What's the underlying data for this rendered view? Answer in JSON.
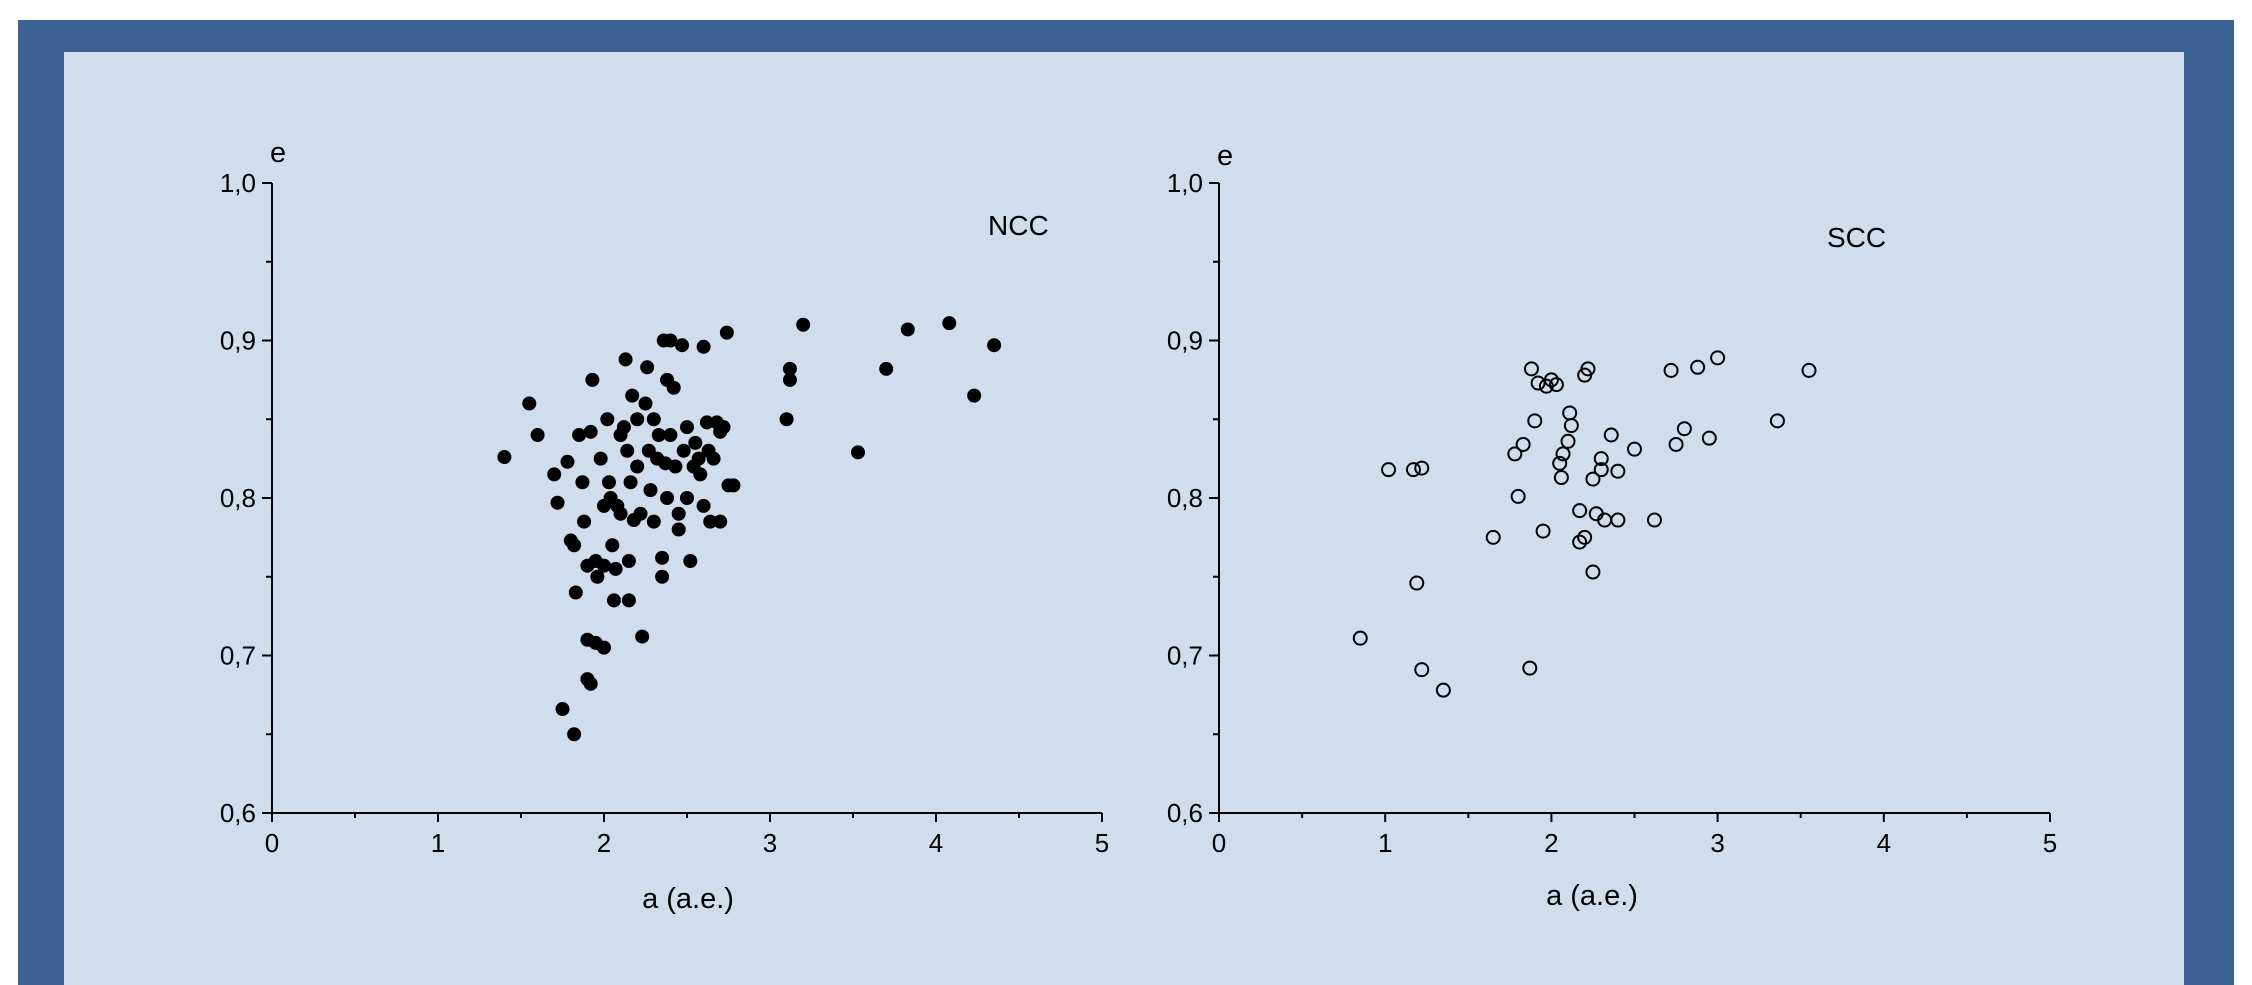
{
  "colors": {
    "frame": "#3b6290",
    "panel": "#cfdded",
    "ink": "#000000"
  },
  "chart_data": [
    {
      "type": "scatter",
      "label": "NCC",
      "marker": "filled-circle",
      "xlabel": "a (a.e.)",
      "ylabel": "e",
      "xlim": [
        0,
        5
      ],
      "ylim": [
        0.6,
        1.0
      ],
      "x_ticks": [
        "0",
        "1",
        "2",
        "3",
        "4",
        "5"
      ],
      "y_ticks": [
        "0,6",
        "0,7",
        "0,8",
        "0,9",
        "1,0"
      ],
      "grid": false,
      "points": [
        [
          1.4,
          0.826
        ],
        [
          1.55,
          0.86
        ],
        [
          1.6,
          0.84
        ],
        [
          1.7,
          0.815
        ],
        [
          1.72,
          0.797
        ],
        [
          1.75,
          0.666
        ],
        [
          1.78,
          0.823
        ],
        [
          1.8,
          0.773
        ],
        [
          1.82,
          0.65
        ],
        [
          1.82,
          0.77
        ],
        [
          1.83,
          0.74
        ],
        [
          1.85,
          0.84
        ],
        [
          1.87,
          0.81
        ],
        [
          1.88,
          0.785
        ],
        [
          1.9,
          0.71
        ],
        [
          1.9,
          0.685
        ],
        [
          1.9,
          0.757
        ],
        [
          1.92,
          0.842
        ],
        [
          1.92,
          0.682
        ],
        [
          1.93,
          0.875
        ],
        [
          1.95,
          0.76
        ],
        [
          1.95,
          0.708
        ],
        [
          1.96,
          0.75
        ],
        [
          1.98,
          0.825
        ],
        [
          2.0,
          0.795
        ],
        [
          2.0,
          0.705
        ],
        [
          2.0,
          0.757
        ],
        [
          2.02,
          0.85
        ],
        [
          2.03,
          0.81
        ],
        [
          2.04,
          0.8
        ],
        [
          2.05,
          0.77
        ],
        [
          2.06,
          0.735
        ],
        [
          2.07,
          0.755
        ],
        [
          2.08,
          0.795
        ],
        [
          2.1,
          0.84
        ],
        [
          2.1,
          0.79
        ],
        [
          2.12,
          0.845
        ],
        [
          2.13,
          0.888
        ],
        [
          2.14,
          0.83
        ],
        [
          2.15,
          0.76
        ],
        [
          2.15,
          0.735
        ],
        [
          2.16,
          0.81
        ],
        [
          2.17,
          0.865
        ],
        [
          2.18,
          0.786
        ],
        [
          2.2,
          0.85
        ],
        [
          2.2,
          0.82
        ],
        [
          2.22,
          0.79
        ],
        [
          2.23,
          0.712
        ],
        [
          2.25,
          0.86
        ],
        [
          2.26,
          0.883
        ],
        [
          2.27,
          0.83
        ],
        [
          2.28,
          0.805
        ],
        [
          2.3,
          0.785
        ],
        [
          2.3,
          0.85
        ],
        [
          2.32,
          0.825
        ],
        [
          2.33,
          0.84
        ],
        [
          2.35,
          0.762
        ],
        [
          2.35,
          0.75
        ],
        [
          2.36,
          0.9
        ],
        [
          2.37,
          0.822
        ],
        [
          2.38,
          0.875
        ],
        [
          2.38,
          0.8
        ],
        [
          2.4,
          0.84
        ],
        [
          2.4,
          0.9
        ],
        [
          2.42,
          0.87
        ],
        [
          2.43,
          0.82
        ],
        [
          2.45,
          0.79
        ],
        [
          2.45,
          0.78
        ],
        [
          2.47,
          0.897
        ],
        [
          2.48,
          0.83
        ],
        [
          2.5,
          0.8
        ],
        [
          2.5,
          0.845
        ],
        [
          2.52,
          0.76
        ],
        [
          2.54,
          0.82
        ],
        [
          2.55,
          0.835
        ],
        [
          2.57,
          0.825
        ],
        [
          2.58,
          0.815
        ],
        [
          2.6,
          0.795
        ],
        [
          2.6,
          0.896
        ],
        [
          2.62,
          0.848
        ],
        [
          2.63,
          0.83
        ],
        [
          2.64,
          0.785
        ],
        [
          2.66,
          0.825
        ],
        [
          2.68,
          0.848
        ],
        [
          2.7,
          0.785
        ],
        [
          2.7,
          0.842
        ],
        [
          2.72,
          0.845
        ],
        [
          2.74,
          0.905
        ],
        [
          2.75,
          0.808
        ],
        [
          2.78,
          0.808
        ],
        [
          3.1,
          0.85
        ],
        [
          3.12,
          0.875
        ],
        [
          3.12,
          0.882
        ],
        [
          3.2,
          0.91
        ],
        [
          3.53,
          0.829
        ],
        [
          3.7,
          0.882
        ],
        [
          3.83,
          0.907
        ],
        [
          4.08,
          0.911
        ],
        [
          4.23,
          0.865
        ],
        [
          4.35,
          0.897
        ]
      ]
    },
    {
      "type": "scatter",
      "label": "SCC",
      "marker": "open-circle",
      "xlabel": "a (a.e.)",
      "ylabel": "e",
      "xlim": [
        0,
        5
      ],
      "ylim": [
        0.6,
        1.0
      ],
      "x_ticks": [
        "0",
        "1",
        "2",
        "3",
        "4",
        "5"
      ],
      "y_ticks": [
        "0,6",
        "0,7",
        "0,8",
        "0,9",
        "1,0"
      ],
      "grid": false,
      "points": [
        [
          0.85,
          0.711
        ],
        [
          1.02,
          0.818
        ],
        [
          1.17,
          0.818
        ],
        [
          1.19,
          0.746
        ],
        [
          1.22,
          0.819
        ],
        [
          1.22,
          0.691
        ],
        [
          1.35,
          0.678
        ],
        [
          1.65,
          0.775
        ],
        [
          1.78,
          0.828
        ],
        [
          1.8,
          0.801
        ],
        [
          1.83,
          0.834
        ],
        [
          1.87,
          0.692
        ],
        [
          1.88,
          0.882
        ],
        [
          1.9,
          0.849
        ],
        [
          1.92,
          0.873
        ],
        [
          1.95,
          0.779
        ],
        [
          1.97,
          0.871
        ],
        [
          2.0,
          0.875
        ],
        [
          2.03,
          0.872
        ],
        [
          2.05,
          0.822
        ],
        [
          2.06,
          0.813
        ],
        [
          2.07,
          0.828
        ],
        [
          2.1,
          0.836
        ],
        [
          2.11,
          0.854
        ],
        [
          2.12,
          0.846
        ],
        [
          2.17,
          0.792
        ],
        [
          2.17,
          0.772
        ],
        [
          2.2,
          0.878
        ],
        [
          2.2,
          0.775
        ],
        [
          2.22,
          0.882
        ],
        [
          2.25,
          0.812
        ],
        [
          2.25,
          0.753
        ],
        [
          2.27,
          0.79
        ],
        [
          2.3,
          0.825
        ],
        [
          2.3,
          0.818
        ],
        [
          2.32,
          0.786
        ],
        [
          2.36,
          0.84
        ],
        [
          2.4,
          0.817
        ],
        [
          2.4,
          0.786
        ],
        [
          2.5,
          0.831
        ],
        [
          2.62,
          0.786
        ],
        [
          2.72,
          0.881
        ],
        [
          2.75,
          0.834
        ],
        [
          2.8,
          0.844
        ],
        [
          2.88,
          0.883
        ],
        [
          2.95,
          0.838
        ],
        [
          3.0,
          0.889
        ],
        [
          3.36,
          0.849
        ],
        [
          3.55,
          0.881
        ]
      ]
    }
  ]
}
